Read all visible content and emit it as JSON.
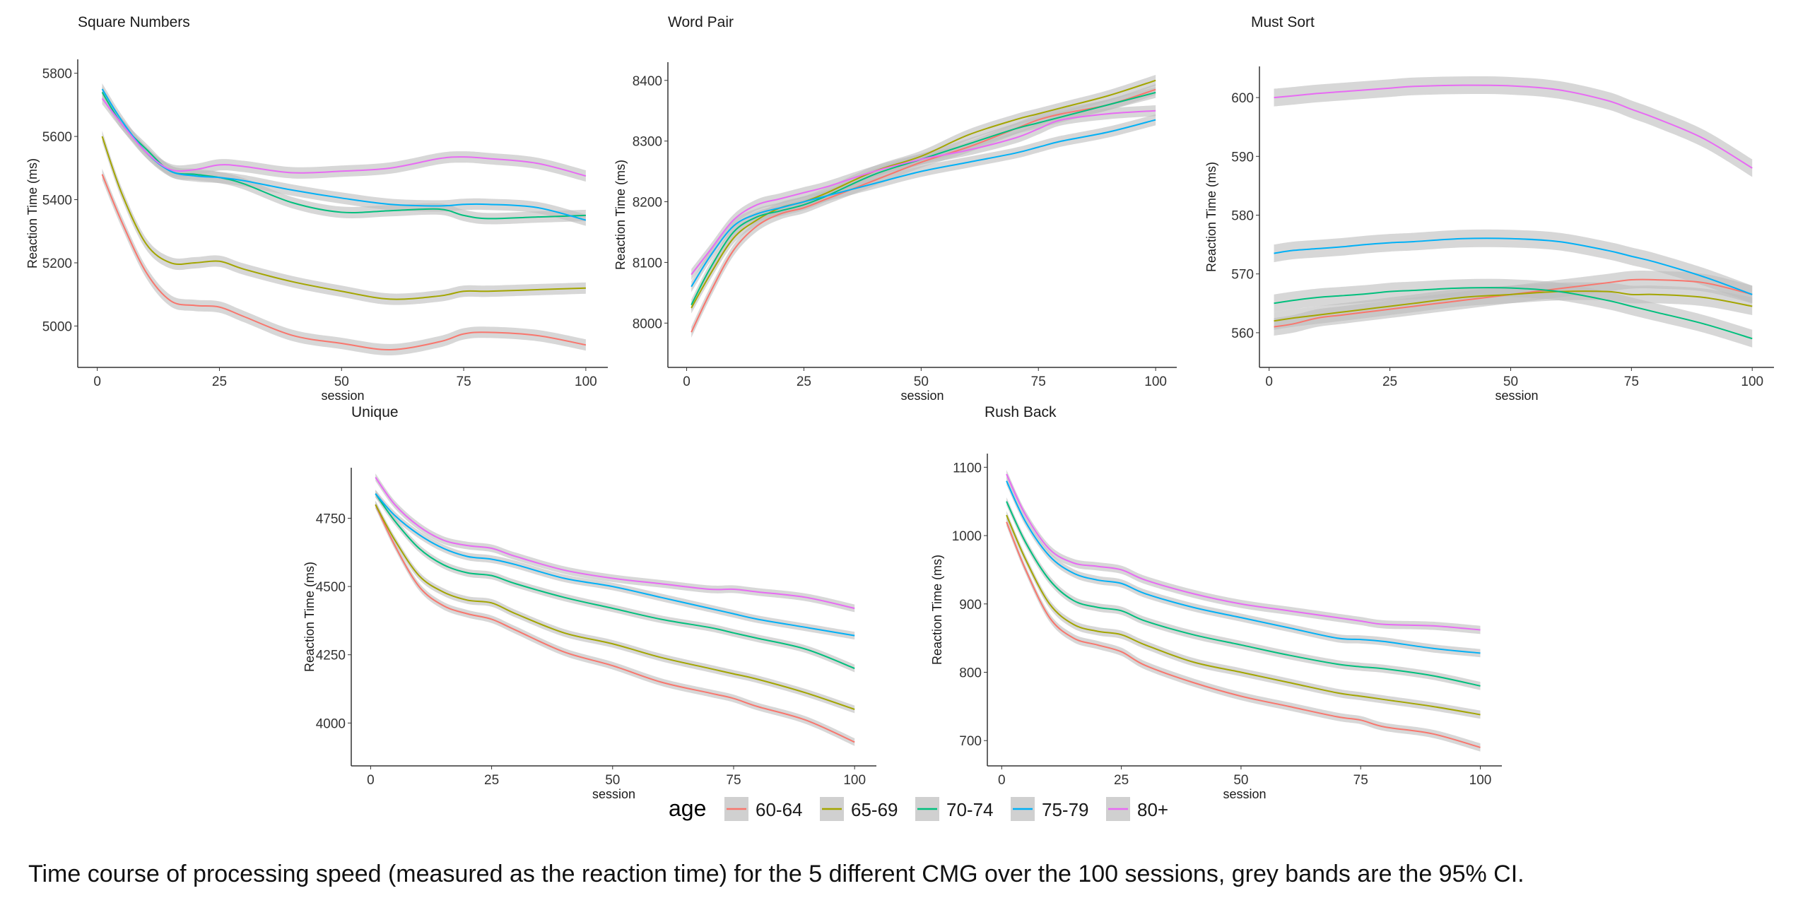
{
  "legend": {
    "title": "age",
    "items": [
      {
        "label": "60-64",
        "color": "#F8766D"
      },
      {
        "label": "65-69",
        "color": "#A3A500"
      },
      {
        "label": "70-74",
        "color": "#00BF7D"
      },
      {
        "label": "75-79",
        "color": "#00B0F6"
      },
      {
        "label": "80+",
        "color": "#E76BF3"
      }
    ]
  },
  "caption": "Time course of processing speed (measured as the reaction time) for the 5 different CMG over the 100 sessions, grey bands are the 95% CI.",
  "chart_data": [
    {
      "type": "line",
      "title": "Square Numbers",
      "xlabel": "session",
      "ylabel": "Reaction Time (ms)",
      "xlim": [
        -4,
        104.5
      ],
      "ylim": [
        4869,
        5844
      ],
      "xticks": [
        0,
        25,
        50,
        75,
        100
      ],
      "yticks": [
        5000,
        5200,
        5400,
        5600,
        5800
      ],
      "ci_halfwidth": 18,
      "x": [
        1,
        5,
        10,
        15,
        20,
        25,
        30,
        40,
        50,
        60,
        70,
        75,
        80,
        90,
        100
      ],
      "series": [
        {
          "name": "60-64",
          "values": [
            5480,
            5330,
            5170,
            5080,
            5065,
            5060,
            5030,
            4970,
            4945,
            4925,
            4950,
            4975,
            4980,
            4970,
            4940
          ]
        },
        {
          "name": "65-69",
          "values": [
            5600,
            5420,
            5260,
            5200,
            5200,
            5205,
            5180,
            5140,
            5110,
            5085,
            5095,
            5110,
            5110,
            5115,
            5120
          ]
        },
        {
          "name": "70-74",
          "values": [
            5740,
            5640,
            5560,
            5490,
            5480,
            5470,
            5450,
            5390,
            5360,
            5365,
            5370,
            5350,
            5340,
            5345,
            5350
          ]
        },
        {
          "name": "75-79",
          "values": [
            5750,
            5650,
            5550,
            5490,
            5475,
            5470,
            5460,
            5430,
            5405,
            5385,
            5380,
            5385,
            5385,
            5375,
            5335
          ]
        },
        {
          "name": "80+",
          "values": [
            5720,
            5640,
            5550,
            5495,
            5495,
            5510,
            5505,
            5485,
            5490,
            5500,
            5530,
            5535,
            5530,
            5515,
            5475
          ]
        }
      ]
    },
    {
      "type": "line",
      "title": "Word Pair",
      "xlabel": "session",
      "ylabel": "Reaction Time (ms)",
      "xlim": [
        -4,
        104.5
      ],
      "ylim": [
        7927,
        8430
      ],
      "xticks": [
        0,
        25,
        50,
        75,
        100
      ],
      "yticks": [
        8000,
        8100,
        8200,
        8300,
        8400
      ],
      "ci_halfwidth": 9,
      "x": [
        1,
        5,
        10,
        15,
        20,
        25,
        30,
        40,
        50,
        60,
        70,
        75,
        80,
        90,
        100
      ],
      "series": [
        {
          "name": "60-64",
          "values": [
            7985,
            8050,
            8120,
            8160,
            8180,
            8190,
            8205,
            8235,
            8265,
            8290,
            8320,
            8335,
            8345,
            8360,
            8385
          ]
        },
        {
          "name": "65-69",
          "values": [
            8025,
            8080,
            8140,
            8170,
            8190,
            8200,
            8215,
            8250,
            8275,
            8310,
            8335,
            8345,
            8355,
            8375,
            8400
          ]
        },
        {
          "name": "70-74",
          "values": [
            8030,
            8090,
            8150,
            8175,
            8185,
            8195,
            8210,
            8245,
            8270,
            8295,
            8320,
            8330,
            8340,
            8360,
            8380
          ]
        },
        {
          "name": "75-79",
          "values": [
            8060,
            8110,
            8160,
            8180,
            8190,
            8200,
            8210,
            8230,
            8250,
            8265,
            8280,
            8290,
            8300,
            8315,
            8335
          ]
        },
        {
          "name": "80+",
          "values": [
            8080,
            8120,
            8170,
            8195,
            8205,
            8215,
            8225,
            8250,
            8270,
            8285,
            8305,
            8320,
            8335,
            8345,
            8350
          ]
        }
      ]
    },
    {
      "type": "line",
      "title": "Must Sort",
      "xlabel": "session",
      "ylabel": "Reaction Time (ms)",
      "xlim": [
        -2,
        104.5
      ],
      "ylim": [
        554.1,
        605.3
      ],
      "xticks": [
        0,
        25,
        50,
        75,
        100
      ],
      "yticks": [
        560,
        570,
        580,
        590,
        600
      ],
      "ci_halfwidth": 1.5,
      "x": [
        1,
        5,
        10,
        15,
        20,
        25,
        30,
        40,
        50,
        60,
        70,
        75,
        80,
        90,
        100
      ],
      "series": [
        {
          "name": "60-64",
          "values": [
            561,
            561.5,
            562.5,
            563,
            563.5,
            564,
            564.5,
            565.5,
            566.5,
            567.5,
            568.5,
            569,
            569,
            568.5,
            566.5
          ]
        },
        {
          "name": "65-69",
          "values": [
            562,
            562.5,
            563,
            563.5,
            564,
            564.5,
            565,
            566,
            566.5,
            567,
            567,
            566.5,
            566.5,
            566,
            564.5
          ]
        },
        {
          "name": "70-74",
          "values": [
            565,
            565.5,
            566,
            566.3,
            566.6,
            567,
            567.2,
            567.6,
            567.6,
            567,
            565.5,
            564.5,
            563.5,
            561.5,
            559
          ]
        },
        {
          "name": "75-79",
          "values": [
            573.5,
            574,
            574.3,
            574.6,
            575,
            575.3,
            575.5,
            576,
            576,
            575.5,
            574,
            573,
            572,
            569.5,
            566.5
          ]
        },
        {
          "name": "80+",
          "values": [
            600,
            600.3,
            600.7,
            601,
            601.3,
            601.6,
            601.9,
            602.1,
            602,
            601.3,
            599.5,
            598,
            596.5,
            593,
            588
          ]
        }
      ]
    },
    {
      "type": "line",
      "title": "Unique",
      "xlabel": "session",
      "ylabel": "Reaction Time (ms)",
      "xlim": [
        -4,
        104.5
      ],
      "ylim": [
        3843,
        4935
      ],
      "xticks": [
        0,
        25,
        50,
        75,
        100
      ],
      "yticks": [
        4000,
        4250,
        4500,
        4750
      ],
      "ci_halfwidth": 14,
      "x": [
        1,
        5,
        10,
        15,
        20,
        25,
        30,
        40,
        50,
        60,
        70,
        75,
        80,
        90,
        100
      ],
      "series": [
        {
          "name": "60-64",
          "values": [
            4800,
            4650,
            4500,
            4430,
            4400,
            4380,
            4340,
            4260,
            4210,
            4150,
            4110,
            4090,
            4060,
            4010,
            3930
          ]
        },
        {
          "name": "65-69",
          "values": [
            4800,
            4670,
            4540,
            4480,
            4450,
            4440,
            4400,
            4330,
            4290,
            4240,
            4200,
            4180,
            4160,
            4110,
            4050
          ]
        },
        {
          "name": "70-74",
          "values": [
            4840,
            4740,
            4640,
            4580,
            4550,
            4540,
            4510,
            4460,
            4420,
            4380,
            4350,
            4330,
            4310,
            4270,
            4200
          ]
        },
        {
          "name": "75-79",
          "values": [
            4840,
            4760,
            4690,
            4640,
            4610,
            4600,
            4580,
            4530,
            4500,
            4460,
            4420,
            4400,
            4380,
            4350,
            4320
          ]
        },
        {
          "name": "80+",
          "values": [
            4900,
            4800,
            4720,
            4670,
            4650,
            4640,
            4610,
            4560,
            4530,
            4510,
            4490,
            4490,
            4480,
            4460,
            4420
          ]
        }
      ]
    },
    {
      "type": "line",
      "title": "Rush Back",
      "xlabel": "session",
      "ylabel": "Reaction Time (ms)",
      "xlim": [
        -3,
        104.5
      ],
      "ylim": [
        663,
        1120
      ],
      "xticks": [
        0,
        25,
        50,
        75,
        100
      ],
      "yticks": [
        700,
        800,
        900,
        1000,
        1100
      ],
      "ci_halfwidth": 6,
      "x": [
        1,
        5,
        10,
        15,
        20,
        25,
        30,
        40,
        50,
        60,
        70,
        75,
        80,
        90,
        100
      ],
      "series": [
        {
          "name": "60-64",
          "values": [
            1020,
            950,
            880,
            850,
            840,
            830,
            810,
            785,
            765,
            750,
            735,
            730,
            720,
            710,
            690
          ]
        },
        {
          "name": "65-69",
          "values": [
            1030,
            965,
            900,
            870,
            860,
            855,
            840,
            815,
            800,
            785,
            770,
            765,
            760,
            750,
            738
          ]
        },
        {
          "name": "70-74",
          "values": [
            1050,
            990,
            935,
            905,
            895,
            890,
            875,
            855,
            840,
            825,
            812,
            808,
            805,
            795,
            780
          ]
        },
        {
          "name": "75-79",
          "values": [
            1080,
            1020,
            970,
            945,
            935,
            930,
            915,
            895,
            880,
            865,
            850,
            848,
            845,
            835,
            828
          ]
        },
        {
          "name": "80+",
          "values": [
            1090,
            1030,
            980,
            960,
            955,
            950,
            935,
            915,
            900,
            890,
            880,
            875,
            870,
            868,
            862
          ]
        }
      ]
    }
  ]
}
